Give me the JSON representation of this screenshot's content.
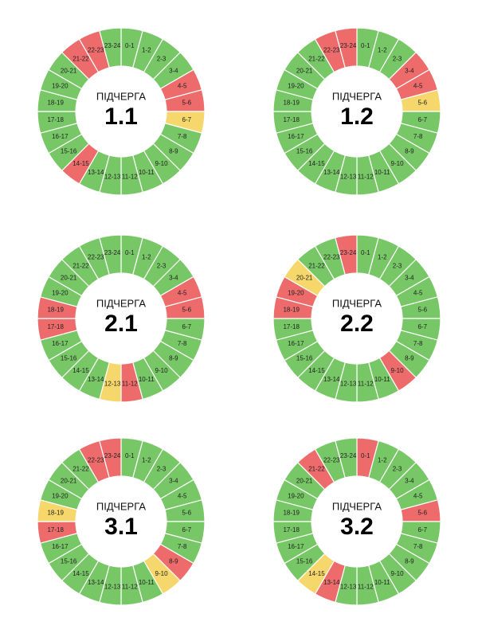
{
  "hours": [
    "0-1",
    "1-2",
    "2-3",
    "3-4",
    "4-5",
    "5-6",
    "6-7",
    "7-8",
    "8-9",
    "9-10",
    "10-11",
    "11-12",
    "12-13",
    "13-14",
    "14-15",
    "15-16",
    "16-17",
    "17-18",
    "18-19",
    "19-20",
    "20-21",
    "21-22",
    "22-23",
    "23-24"
  ],
  "center_label": "ПІДЧЕРГА",
  "charts": [
    {
      "name": "1.1",
      "colors": [
        "#77c766",
        "#77c766",
        "#77c766",
        "#77c766",
        "#ee6b6b",
        "#ee6b6b",
        "#f6d76b",
        "#77c766",
        "#77c766",
        "#77c766",
        "#77c766",
        "#77c766",
        "#77c766",
        "#77c766",
        "#ee6b6b",
        "#77c766",
        "#77c766",
        "#77c766",
        "#77c766",
        "#77c766",
        "#77c766",
        "#ee6b6b",
        "#ee6b6b",
        "#77c766"
      ]
    },
    {
      "name": "1.2",
      "colors": [
        "#77c766",
        "#77c766",
        "#77c766",
        "#ee6b6b",
        "#ee6b6b",
        "#f6d76b",
        "#77c766",
        "#77c766",
        "#77c766",
        "#77c766",
        "#77c766",
        "#77c766",
        "#77c766",
        "#77c766",
        "#77c766",
        "#77c766",
        "#77c766",
        "#77c766",
        "#77c766",
        "#77c766",
        "#77c766",
        "#77c766",
        "#ee6b6b",
        "#ee6b6b"
      ]
    },
    {
      "name": "2.1",
      "colors": [
        "#77c766",
        "#77c766",
        "#77c766",
        "#77c766",
        "#ee6b6b",
        "#ee6b6b",
        "#77c766",
        "#77c766",
        "#77c766",
        "#77c766",
        "#77c766",
        "#ee6b6b",
        "#f6d76b",
        "#77c766",
        "#77c766",
        "#77c766",
        "#77c766",
        "#ee6b6b",
        "#ee6b6b",
        "#77c766",
        "#77c766",
        "#77c766",
        "#77c766",
        "#77c766"
      ]
    },
    {
      "name": "2.2",
      "colors": [
        "#77c766",
        "#77c766",
        "#77c766",
        "#77c766",
        "#77c766",
        "#77c766",
        "#77c766",
        "#77c766",
        "#77c766",
        "#ee6b6b",
        "#77c766",
        "#77c766",
        "#77c766",
        "#77c766",
        "#77c766",
        "#77c766",
        "#77c766",
        "#77c766",
        "#ee6b6b",
        "#ee6b6b",
        "#f6d76b",
        "#77c766",
        "#77c766",
        "#ee6b6b"
      ]
    },
    {
      "name": "3.1",
      "colors": [
        "#77c766",
        "#77c766",
        "#77c766",
        "#77c766",
        "#77c766",
        "#77c766",
        "#77c766",
        "#77c766",
        "#ee6b6b",
        "#f6d76b",
        "#77c766",
        "#77c766",
        "#77c766",
        "#77c766",
        "#77c766",
        "#77c766",
        "#77c766",
        "#ee6b6b",
        "#f6d76b",
        "#77c766",
        "#77c766",
        "#77c766",
        "#ee6b6b",
        "#ee6b6b"
      ]
    },
    {
      "name": "3.2",
      "colors": [
        "#ee6b6b",
        "#77c766",
        "#77c766",
        "#77c766",
        "#77c766",
        "#ee6b6b",
        "#77c766",
        "#77c766",
        "#77c766",
        "#77c766",
        "#77c766",
        "#77c766",
        "#77c766",
        "#ee6b6b",
        "#f6d76b",
        "#77c766",
        "#77c766",
        "#77c766",
        "#77c766",
        "#77c766",
        "#77c766",
        "#ee6b6b",
        "#77c766",
        "#77c766"
      ]
    }
  ]
}
